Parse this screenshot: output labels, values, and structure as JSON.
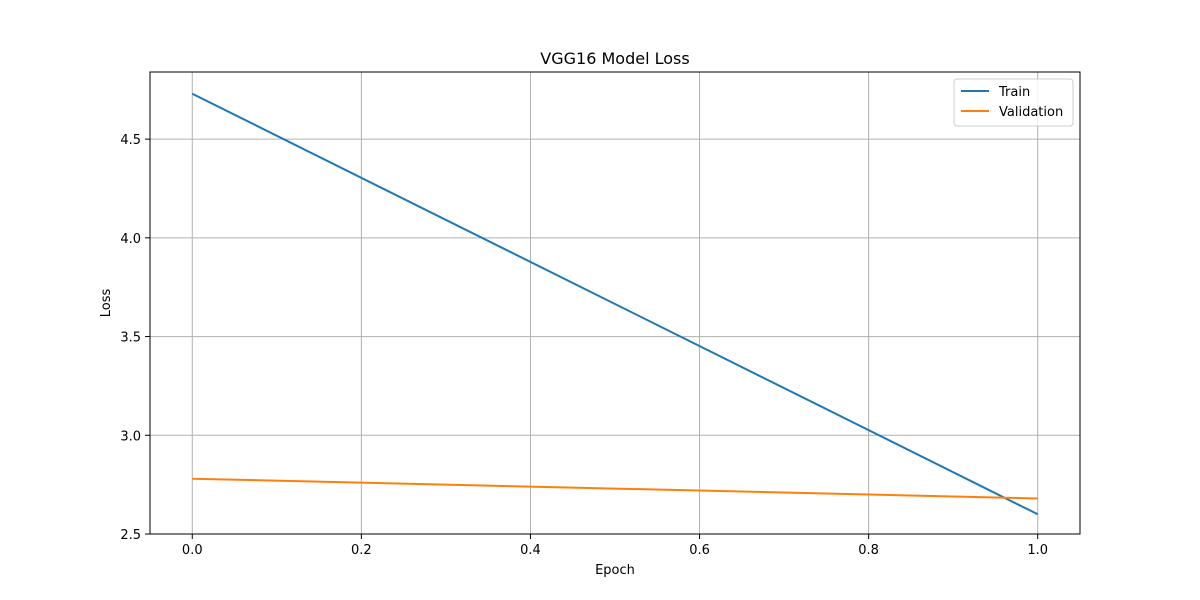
{
  "chart_data": {
    "type": "line",
    "title": "VGG16 Model Loss",
    "xlabel": "Epoch",
    "ylabel": "Loss",
    "x": [
      0.0,
      1.0
    ],
    "series": [
      {
        "name": "Train",
        "values": [
          4.73,
          2.6
        ],
        "color": "#1f77b4"
      },
      {
        "name": "Validation",
        "values": [
          2.78,
          2.68
        ],
        "color": "#ff7f0e"
      }
    ],
    "xlim": [
      -0.05,
      1.05
    ],
    "ylim": [
      2.5,
      4.84
    ],
    "xticks": [
      "0.0",
      "0.2",
      "0.4",
      "0.6",
      "0.8",
      "1.0"
    ],
    "yticks": [
      "2.5",
      "3.0",
      "3.5",
      "4.0",
      "4.5"
    ],
    "grid": true,
    "legend_position": "upper right"
  }
}
